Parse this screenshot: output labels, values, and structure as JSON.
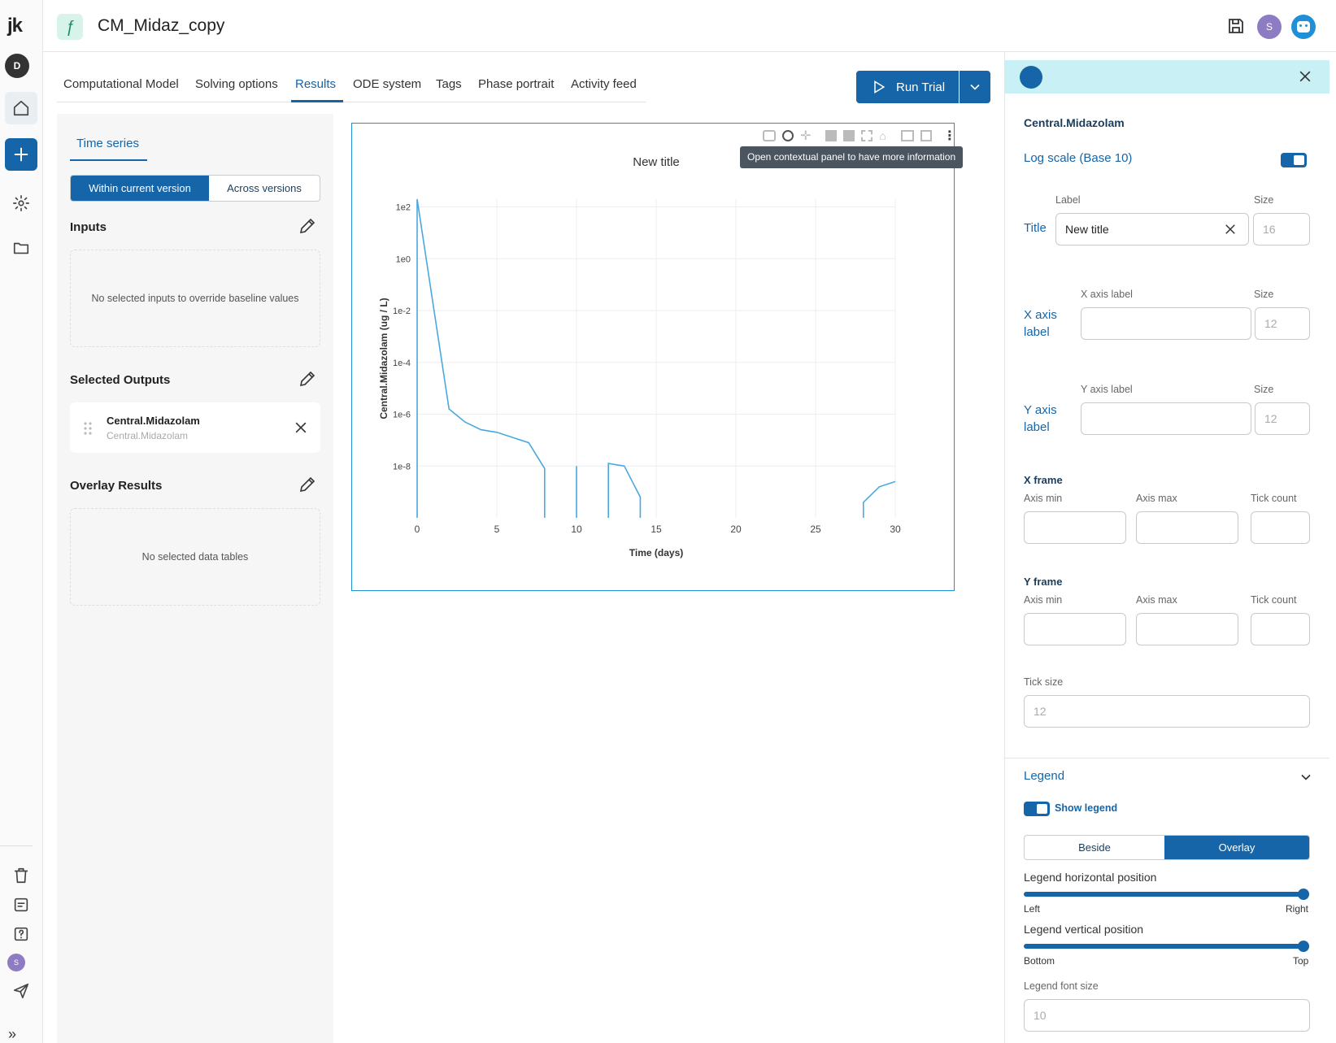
{
  "app": {
    "title": "CM_Midaz_copy",
    "logo": "jk",
    "user_initial_rail": "D",
    "user_initial_header": "S",
    "user_initial_rail_bottom": "S",
    "accent_color": "#1565a8"
  },
  "tabs": [
    {
      "label": "Computational Model",
      "active": false
    },
    {
      "label": "Solving options",
      "active": false
    },
    {
      "label": "Results",
      "active": true
    },
    {
      "label": "ODE system",
      "active": false
    },
    {
      "label": "Tags",
      "active": false
    },
    {
      "label": "Phase portrait",
      "active": false
    },
    {
      "label": "Activity feed",
      "active": false
    }
  ],
  "run_button": {
    "label": "Run Trial"
  },
  "left_panel": {
    "subtab": "Time series",
    "toggle": {
      "options": [
        "Within current version",
        "Across versions"
      ],
      "selected": "Within current version"
    },
    "inputs": {
      "title": "Inputs",
      "empty_text": "No selected inputs to override baseline values"
    },
    "outputs": {
      "title": "Selected Outputs",
      "items": [
        {
          "name": "Central.Midazolam",
          "subtitle": "Central.Midazolam"
        }
      ]
    },
    "overlay": {
      "title": "Overlay Results",
      "empty_text": "No selected data tables"
    }
  },
  "tooltip": "Open contextual panel to have more information",
  "chart_data": {
    "type": "line",
    "title": "New title",
    "xlabel": "Time (days)",
    "ylabel": "Central.Midazolam (ug / L)",
    "yscale": "log10",
    "grid": true,
    "xlim": [
      0,
      30
    ],
    "x_ticks": [
      0,
      5,
      10,
      15,
      20,
      25,
      30
    ],
    "x_tick_labels": [
      "0",
      "5",
      "10",
      "15",
      "20",
      "25",
      "30"
    ],
    "y_ticks_exponent": [
      2,
      0,
      -2,
      -4,
      -6,
      -8
    ],
    "y_tick_labels": [
      "1e2",
      "1e0",
      "1e-2",
      "1e-4",
      "1e-6",
      "1e-8"
    ],
    "line_color": "#4aa8e0",
    "series": [
      {
        "segments": [
          [
            [
              0,
              -10
            ],
            [
              0,
              2.3
            ],
            [
              2,
              -5.8
            ],
            [
              3,
              -6.3
            ],
            [
              4,
              -6.6
            ],
            [
              5,
              -6.7
            ],
            [
              7,
              -7.1
            ],
            [
              8,
              -8.1
            ],
            [
              8,
              -10
            ]
          ],
          [
            [
              10,
              -10
            ],
            [
              10,
              -8.0
            ]
          ],
          [
            [
              12,
              -10
            ],
            [
              12,
              -7.9
            ],
            [
              13,
              -8.0
            ],
            [
              14,
              -9.2
            ],
            [
              14,
              -10
            ]
          ],
          [
            [
              28,
              -10
            ],
            [
              28,
              -9.4
            ],
            [
              29,
              -8.8
            ],
            [
              30,
              -8.6
            ]
          ]
        ]
      }
    ]
  },
  "right_panel": {
    "header_output": "Central.Midazolam",
    "log_scale_label": "Log scale (Base 10)",
    "label_col": "Label",
    "size_col": "Size",
    "title_row": {
      "label": "Title",
      "value": "New title",
      "size_placeholder": "16"
    },
    "x_axis_row": {
      "label": "X axis label",
      "field_label": "X axis label",
      "value": "",
      "size_label": "Size",
      "size_placeholder": "12"
    },
    "y_axis_row": {
      "label": "Y axis label",
      "field_label": "Y axis label",
      "value": "",
      "size_label": "Size",
      "size_placeholder": "12"
    },
    "x_frame": {
      "title": "X frame",
      "cols": [
        "Axis min",
        "Axis max",
        "Tick count"
      ]
    },
    "y_frame": {
      "title": "Y frame",
      "cols": [
        "Axis min",
        "Axis max",
        "Tick count"
      ]
    },
    "tick_size": {
      "label": "Tick size",
      "placeholder": "12"
    },
    "legend": {
      "title": "Legend",
      "show_label": "Show legend",
      "placement_options": [
        "Beside",
        "Overlay"
      ],
      "placement_selected": "Overlay",
      "horizontal": {
        "label": "Legend horizontal position",
        "min_label": "Left",
        "max_label": "Right",
        "value": 1.0
      },
      "vertical": {
        "label": "Legend vertical position",
        "min_label": "Bottom",
        "max_label": "Top",
        "value": 1.0
      },
      "font_size": {
        "label": "Legend font size",
        "placeholder": "10"
      }
    }
  }
}
